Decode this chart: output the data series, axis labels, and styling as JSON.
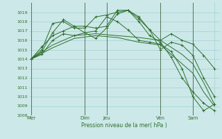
{
  "title": "",
  "xlabel": "Pression niveau de la mer( hPa )",
  "background_color": "#cce8e8",
  "grid_color": "#99cccc",
  "line_color": "#2d6e2d",
  "ylim": [
    1008,
    1020
  ],
  "yticks": [
    1008,
    1009,
    1010,
    1011,
    1012,
    1013,
    1014,
    1015,
    1016,
    1017,
    1018,
    1019
  ],
  "xtick_positions": [
    0,
    5,
    7,
    12,
    15,
    17
  ],
  "xtick_labels": [
    "Mer",
    "Dim",
    "Jeu",
    "Ven",
    "Sam",
    ""
  ],
  "vlines": [
    0,
    5,
    7,
    12,
    15
  ],
  "vline_color": "#446644",
  "series": [
    {
      "x": [
        0,
        1,
        2,
        3,
        4,
        5,
        6,
        7,
        8,
        9,
        10,
        11,
        12,
        13,
        14,
        15,
        16,
        17
      ],
      "y": [
        1014.0,
        1015.0,
        1017.8,
        1018.0,
        1017.3,
        1017.3,
        1018.5,
        1018.7,
        1019.0,
        1019.2,
        1018.5,
        1017.1,
        1016.0,
        1016.7,
        1016.0,
        1015.6,
        1014.4,
        1013.0
      ],
      "marker": "+"
    },
    {
      "x": [
        0,
        1,
        2,
        3,
        4,
        5,
        6,
        7,
        8,
        9,
        10,
        11,
        12,
        13,
        14,
        15,
        16,
        17
      ],
      "y": [
        1014.0,
        1014.8,
        1016.8,
        1018.2,
        1017.5,
        1016.8,
        1016.2,
        1017.3,
        1018.8,
        1019.2,
        1018.0,
        1016.5,
        1015.8,
        1014.2,
        1012.0,
        1010.5,
        1009.3,
        1008.5
      ],
      "marker": "+"
    },
    {
      "x": [
        0,
        2,
        4,
        6,
        8,
        10,
        12,
        14,
        15,
        16,
        17
      ],
      "y": [
        1014.0,
        1015.5,
        1016.5,
        1016.7,
        1016.5,
        1016.3,
        1016.0,
        1014.5,
        1013.5,
        1011.5,
        1009.2
      ],
      "marker": null
    },
    {
      "x": [
        0,
        2,
        4,
        6,
        8,
        10,
        12,
        14,
        15,
        16,
        17
      ],
      "y": [
        1014.0,
        1015.2,
        1016.2,
        1016.5,
        1016.3,
        1015.8,
        1015.5,
        1013.5,
        1012.5,
        1010.5,
        1009.0
      ],
      "marker": null
    },
    {
      "x": [
        0,
        1,
        2,
        3,
        4,
        5,
        6,
        7,
        8,
        9,
        10,
        11,
        12,
        13,
        14,
        15,
        16,
        17
      ],
      "y": [
        1014.0,
        1015.3,
        1016.5,
        1017.0,
        1017.5,
        1017.5,
        1017.3,
        1017.5,
        1019.2,
        1019.2,
        1018.3,
        1017.1,
        1015.0,
        1015.8,
        1015.5,
        1014.4,
        1012.0,
        1010.0
      ],
      "marker": "+"
    },
    {
      "x": [
        0,
        1,
        2,
        3,
        4,
        5,
        6,
        7,
        8,
        9,
        10,
        11,
        12,
        13,
        14,
        15,
        16,
        17
      ],
      "y": [
        1014.0,
        1014.5,
        1016.0,
        1016.7,
        1016.5,
        1016.8,
        1017.0,
        1018.5,
        1018.0,
        1017.1,
        1016.0,
        1015.8,
        1015.6,
        1014.8,
        1013.0,
        1010.0,
        1008.5,
        1009.2
      ],
      "marker": "+"
    }
  ]
}
